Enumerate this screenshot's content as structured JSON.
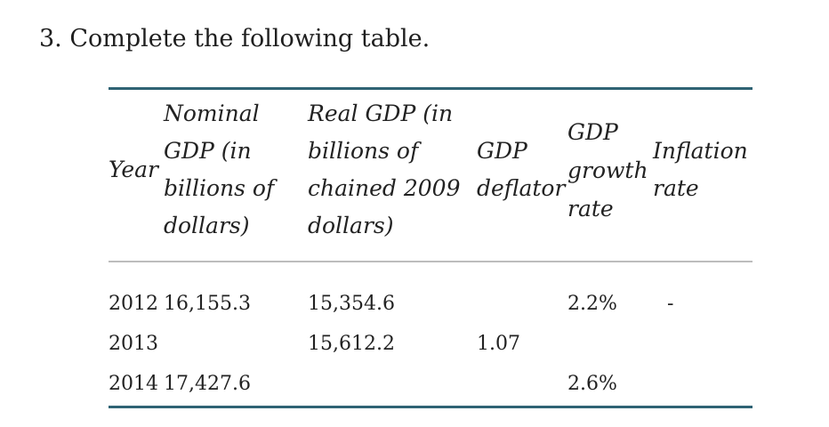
{
  "question": "3. Complete the following table.",
  "table": {
    "headers": {
      "year": "Year",
      "nominal_gdp": "Nominal GDP (in billions of dollars)",
      "real_gdp": "Real GDP (in billions of chained 2009 dollars)",
      "gdp_deflator": "GDP deflator",
      "gdp_growth_rate": "GDP growth rate",
      "inflation_rate": "Inflation rate"
    },
    "rows": [
      {
        "year": "2012",
        "nominal_gdp": "16,155.3",
        "real_gdp": "15,354.6",
        "gdp_deflator": "",
        "gdp_growth_rate": "2.2%",
        "inflation_rate": "-"
      },
      {
        "year": "2013",
        "nominal_gdp": "",
        "real_gdp": "15,612.2",
        "gdp_deflator": "1.07",
        "gdp_growth_rate": "",
        "inflation_rate": ""
      },
      {
        "year": "2014",
        "nominal_gdp": "17,427.6",
        "real_gdp": "",
        "gdp_deflator": "",
        "gdp_growth_rate": "2.6%",
        "inflation_rate": ""
      }
    ]
  }
}
